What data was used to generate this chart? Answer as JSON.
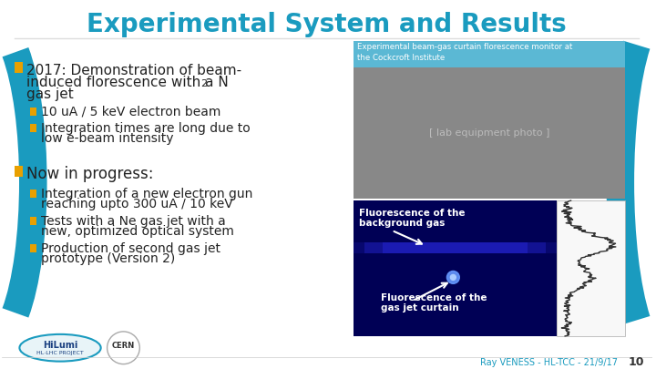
{
  "title": "Experimental System and Results",
  "title_color": "#1a9bbf",
  "title_fontsize": 20,
  "bg_color": "#ffffff",
  "footer_text": "Ray VENESS - HL-TCC - 21/9/17",
  "footer_page": "10",
  "footer_color": "#1a9bbf",
  "image_caption": "Experimental beam-gas curtain florescence monitor at\nthe Cockcroft Institute",
  "caption_bg": "#5bb8d4",
  "bullet_color": "#e8a000",
  "sub_bullet_color": "#e8a000",
  "text_color": "#222222",
  "accent_color": "#1a9bbf",
  "bullet1_main": "2017: Demonstration of beam-\ninduced florescence with a N",
  "bullet1_sub_items": [
    "10 uA / 5 keV electron beam",
    "Integration times are long due to\nlow e-beam intensity"
  ],
  "bullet2_main": "Now in progress:",
  "bullet2_sub_items": [
    "Integration of a new electron gun\nreaching upto 300 uA / 10 keV",
    "Tests with a Ne gas jet with a\nnew, optimized optical system",
    "Production of second gas jet\nprototype (Version 2)"
  ]
}
